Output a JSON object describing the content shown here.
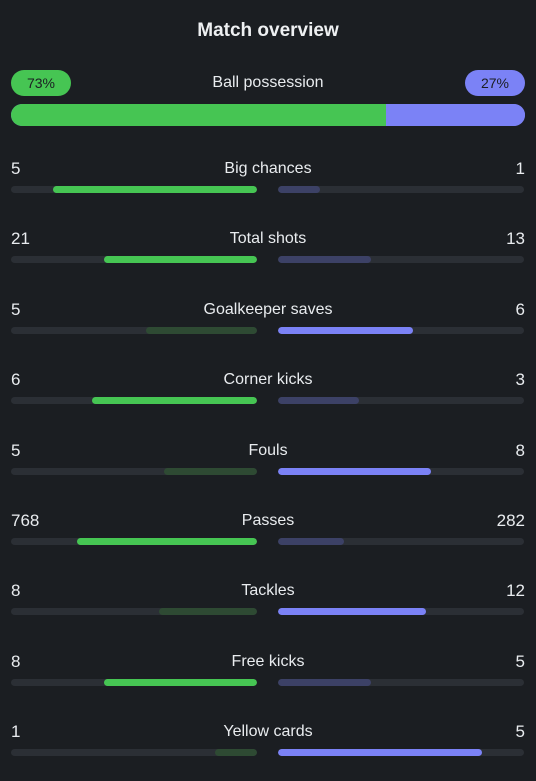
{
  "header": {
    "title": "Match overview"
  },
  "colors": {
    "home_win": "#46c553",
    "home_lose": "#2e4a33",
    "away_win": "#7b82f6",
    "away_lose": "#3c4166",
    "track": "#2b2f35"
  },
  "possession": {
    "label": "Ball possession",
    "home_text": "73%",
    "away_text": "27%",
    "home_pct": 73,
    "away_pct": 27
  },
  "stats": [
    {
      "label": "Big chances",
      "home": "5",
      "away": "1",
      "home_frac": 0.83,
      "away_frac": 0.17
    },
    {
      "label": "Total shots",
      "home": "21",
      "away": "13",
      "home_frac": 0.62,
      "away_frac": 0.38
    },
    {
      "label": "Goalkeeper saves",
      "home": "5",
      "away": "6",
      "home_frac": 0.45,
      "away_frac": 0.55
    },
    {
      "label": "Corner kicks",
      "home": "6",
      "away": "3",
      "home_frac": 0.67,
      "away_frac": 0.33
    },
    {
      "label": "Fouls",
      "home": "5",
      "away": "8",
      "home_frac": 0.38,
      "away_frac": 0.62
    },
    {
      "label": "Passes",
      "home": "768",
      "away": "282",
      "home_frac": 0.73,
      "away_frac": 0.27
    },
    {
      "label": "Tackles",
      "home": "8",
      "away": "12",
      "home_frac": 0.4,
      "away_frac": 0.6
    },
    {
      "label": "Free kicks",
      "home": "8",
      "away": "5",
      "home_frac": 0.62,
      "away_frac": 0.38
    },
    {
      "label": "Yellow cards",
      "home": "1",
      "away": "5",
      "home_frac": 0.17,
      "away_frac": 0.83
    }
  ]
}
